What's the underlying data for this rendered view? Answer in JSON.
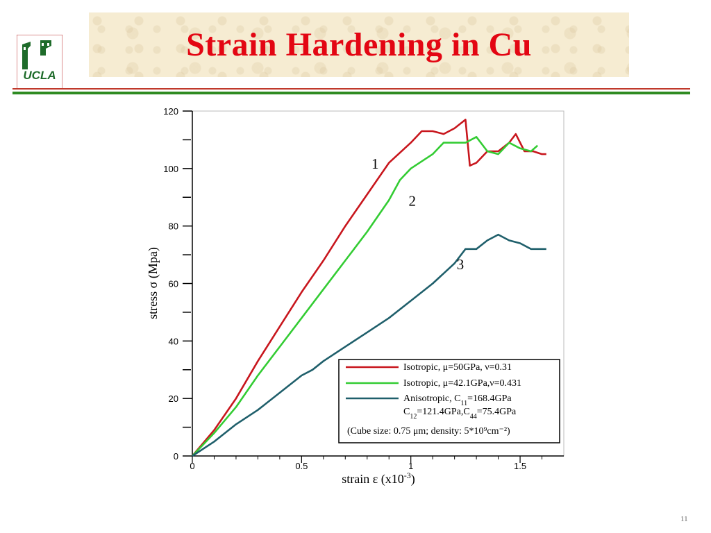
{
  "slide": {
    "title": "Strain Hardening in Cu",
    "page_number": "11",
    "logo_text": "UCLA"
  },
  "colors": {
    "title": "#e30613",
    "series1": "#c8161d",
    "series2": "#33cc33",
    "series3": "#1f5f6b"
  },
  "chart_data": {
    "type": "line",
    "xlabel": "strain ε (x10",
    "xlabel_sup": "-3",
    "xlabel_end": ")",
    "ylabel": "stress σ (Mpa)",
    "xlim": [
      0,
      1.7
    ],
    "ylim": [
      0,
      120
    ],
    "x_ticks": [
      "0",
      "0.5",
      "1",
      "1.5"
    ],
    "y_ticks": [
      "0",
      "20",
      "40",
      "60",
      "80",
      "100",
      "120"
    ],
    "curve_labels": [
      "1",
      "2",
      "3"
    ],
    "series": [
      {
        "name": "Isotropic, μ=50GPa, ν=0.31",
        "points": [
          [
            0,
            0
          ],
          [
            0.1,
            9
          ],
          [
            0.2,
            20
          ],
          [
            0.3,
            33
          ],
          [
            0.4,
            45
          ],
          [
            0.5,
            57
          ],
          [
            0.6,
            68
          ],
          [
            0.7,
            80
          ],
          [
            0.8,
            91
          ],
          [
            0.9,
            102
          ],
          [
            1.0,
            109
          ],
          [
            1.05,
            113
          ],
          [
            1.1,
            113
          ],
          [
            1.15,
            112
          ],
          [
            1.2,
            114
          ],
          [
            1.25,
            117
          ],
          [
            1.27,
            101
          ],
          [
            1.3,
            102
          ],
          [
            1.35,
            106
          ],
          [
            1.4,
            106
          ],
          [
            1.45,
            109
          ],
          [
            1.48,
            112
          ],
          [
            1.52,
            106
          ],
          [
            1.56,
            106
          ],
          [
            1.6,
            105
          ],
          [
            1.62,
            105
          ]
        ]
      },
      {
        "name": "Isotropic, μ=42.1GPa,ν=0.431",
        "points": [
          [
            0,
            0
          ],
          [
            0.1,
            8
          ],
          [
            0.2,
            17
          ],
          [
            0.3,
            28
          ],
          [
            0.4,
            38
          ],
          [
            0.5,
            48
          ],
          [
            0.6,
            58
          ],
          [
            0.7,
            68
          ],
          [
            0.8,
            78
          ],
          [
            0.9,
            89
          ],
          [
            0.95,
            96
          ],
          [
            1.0,
            100
          ],
          [
            1.1,
            105
          ],
          [
            1.15,
            109
          ],
          [
            1.2,
            109
          ],
          [
            1.25,
            109
          ],
          [
            1.3,
            111
          ],
          [
            1.35,
            106
          ],
          [
            1.4,
            105
          ],
          [
            1.45,
            109
          ],
          [
            1.5,
            107
          ],
          [
            1.55,
            106
          ],
          [
            1.58,
            108
          ]
        ]
      },
      {
        "name": "Anisotropic, C11=168.4GPa C12=121.4GPa,C44=75.4GPa",
        "points": [
          [
            0,
            0
          ],
          [
            0.1,
            5
          ],
          [
            0.2,
            11
          ],
          [
            0.3,
            16
          ],
          [
            0.4,
            22
          ],
          [
            0.5,
            28
          ],
          [
            0.55,
            30
          ],
          [
            0.6,
            33
          ],
          [
            0.7,
            38
          ],
          [
            0.8,
            43
          ],
          [
            0.9,
            48
          ],
          [
            1.0,
            54
          ],
          [
            1.1,
            60
          ],
          [
            1.2,
            67
          ],
          [
            1.25,
            72
          ],
          [
            1.3,
            72
          ],
          [
            1.35,
            75
          ],
          [
            1.4,
            77
          ],
          [
            1.45,
            75
          ],
          [
            1.5,
            74
          ],
          [
            1.55,
            72
          ],
          [
            1.6,
            72
          ],
          [
            1.62,
            72
          ]
        ]
      }
    ],
    "legend_placement": "bottom-right",
    "legend_note": "(Cube size: 0.75 μm; density: 5*10⁹cm⁻²)"
  }
}
